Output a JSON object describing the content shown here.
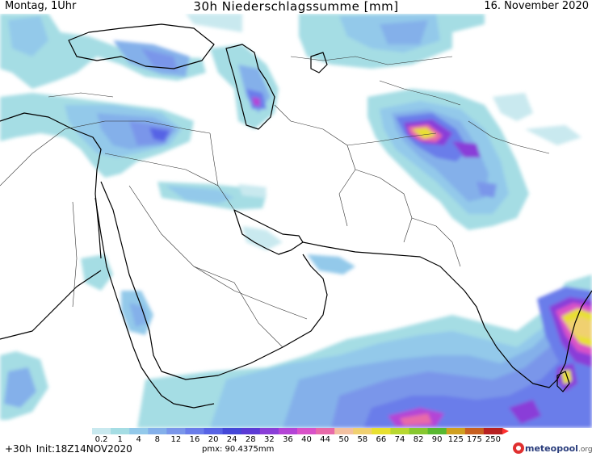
{
  "header": {
    "left": "Montag, 1Uhr",
    "title": "30h Niederschlagssumme [mm]",
    "date": "16. November 2020"
  },
  "legend": {
    "ticks": [
      "0.2",
      "1",
      "4",
      "8",
      "12",
      "16",
      "20",
      "24",
      "28",
      "32",
      "36",
      "40",
      "44",
      "50",
      "58",
      "66",
      "74",
      "82",
      "90",
      "125",
      "175",
      "250"
    ],
    "colors": [
      "#c9e9ef",
      "#a5dde4",
      "#93c9ea",
      "#84b0ea",
      "#7a96ea",
      "#6a7dea",
      "#5763e5",
      "#4447d8",
      "#5b3ad6",
      "#8a3ed8",
      "#b444d6",
      "#d952c8",
      "#e86aa8",
      "#f3c0a0",
      "#f0d070",
      "#e8e030",
      "#b8d830",
      "#88c830",
      "#58b830",
      "#d0a020",
      "#c86020",
      "#b82020"
    ],
    "arrow_color": "#ff3030"
  },
  "footer": {
    "lead": "+30h",
    "init": "Init:18Z14NOV2020",
    "pmx": "pmx: 90.4375mm"
  },
  "logo": {
    "name": "meteopool",
    "suffix": ".org",
    "colors": {
      "text": "#2a3d7c",
      "mark": "#e03030"
    }
  }
}
